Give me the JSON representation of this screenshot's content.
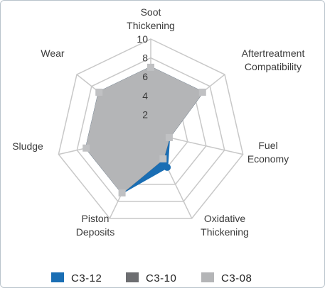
{
  "colors": {
    "grid": "#c8c8c8",
    "c3_12": "#1a6eb4",
    "c3_10": "#6d6e71",
    "c3_08": "#b4b5b7"
  },
  "chart_data": {
    "type": "radar",
    "axes": [
      [
        "Soot",
        "Thickening"
      ],
      [
        "Aftertreatment",
        "Compatibility"
      ],
      [
        "Fuel",
        "Economy"
      ],
      [
        "Oxidative",
        "Thickening"
      ],
      [
        "Piston",
        "Deposits"
      ],
      [
        "Sludge"
      ],
      [
        "Wear"
      ]
    ],
    "r_ticks": [
      2,
      4,
      6,
      8,
      10
    ],
    "r_range": [
      0,
      10
    ],
    "series": [
      {
        "name": "C3-12",
        "color": "#1a6eb4",
        "values": [
          7,
          7,
          2,
          4,
          7,
          7,
          7
        ]
      },
      {
        "name": "C3-10",
        "color": "#6d6e71",
        "values": [
          7,
          7,
          2,
          3,
          7,
          7,
          7
        ]
      },
      {
        "name": "C3-08",
        "color": "#b4b5b7",
        "values": [
          7,
          7,
          2,
          3,
          7,
          7,
          7
        ]
      }
    ],
    "legend_position": "bottom"
  }
}
